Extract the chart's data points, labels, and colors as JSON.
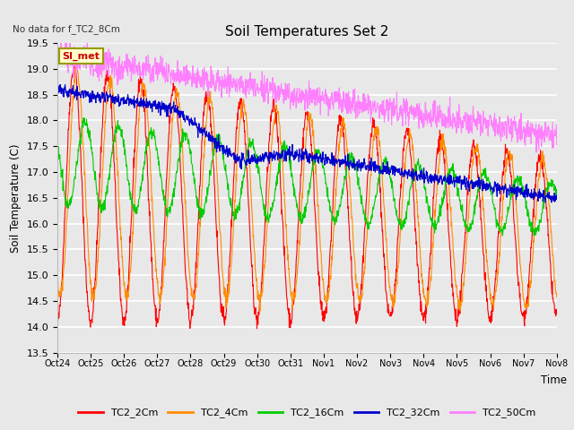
{
  "title": "Soil Temperatures Set 2",
  "subtitle": "No data for f_TC2_8Cm",
  "ylabel": "Soil Temperature (C)",
  "xlabel": "Time",
  "plot_bg_color": "#e8e8e8",
  "ylim": [
    13.5,
    19.5
  ],
  "yticks": [
    13.5,
    14.0,
    14.5,
    15.0,
    15.5,
    16.0,
    16.5,
    17.0,
    17.5,
    18.0,
    18.5,
    19.0,
    19.5
  ],
  "xtick_labels": [
    "Oct 24",
    "Oct 25",
    "Oct 26",
    "Oct 27",
    "Oct 28",
    "Oct 29",
    "Oct 30",
    "Oct 31",
    "Nov 1",
    "Nov 2",
    "Nov 3",
    "Nov 4",
    "Nov 5",
    "Nov 6",
    "Nov 7",
    "Nov 8"
  ],
  "legend_labels": [
    "TC2_2Cm",
    "TC2_4Cm",
    "TC2_16Cm",
    "TC2_32Cm",
    "TC2_50Cm"
  ],
  "line_colors": [
    "#ff0000",
    "#ff8c00",
    "#00cc00",
    "#0000cc",
    "#ff80ff"
  ],
  "annotation_text": "SI_met",
  "annotation_color": "#cc0000",
  "annotation_bg": "#ffffcc",
  "annotation_border": "#999900"
}
